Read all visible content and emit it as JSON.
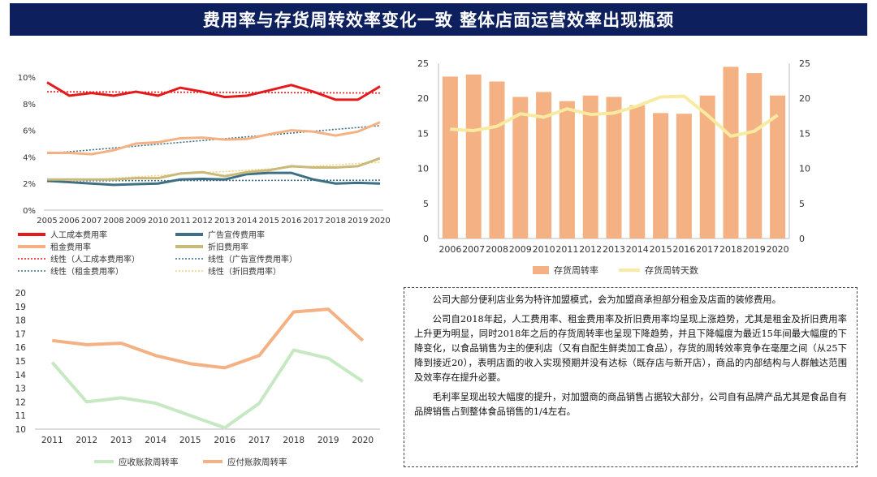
{
  "title": "费用率与存货周转效率变化一致 整体店面运营效率出现瓶颈",
  "chart_data": [
    {
      "type": "line",
      "x": [
        "2005",
        "2006",
        "2007",
        "2008",
        "2009",
        "2010",
        "2011",
        "2012",
        "2013",
        "2014",
        "2015",
        "2016",
        "2017",
        "2018",
        "2019",
        "2020"
      ],
      "ylim": [
        0,
        10
      ],
      "yticks": [
        "0%",
        "2%",
        "4%",
        "6%",
        "8%",
        "10%"
      ],
      "series": [
        {
          "name": "人工成本费用率",
          "values": [
            9.6,
            8.6,
            8.8,
            8.6,
            8.9,
            8.6,
            9.2,
            8.9,
            8.5,
            8.6,
            9.0,
            9.4,
            8.9,
            8.3,
            8.3,
            9.3
          ],
          "color": "#e41a1c"
        },
        {
          "name": "广告宣传费用率",
          "values": [
            2.2,
            2.1,
            2.0,
            1.9,
            1.95,
            2.0,
            2.3,
            2.35,
            2.3,
            2.7,
            2.8,
            2.8,
            2.3,
            2.0,
            2.05,
            2.0
          ],
          "color": "#3e6f84"
        },
        {
          "name": "租金费用率",
          "values": [
            4.3,
            4.3,
            4.2,
            4.5,
            5.0,
            5.1,
            5.4,
            5.45,
            5.3,
            5.35,
            5.7,
            6.0,
            5.9,
            5.6,
            5.9,
            6.6
          ],
          "color": "#f4b183"
        },
        {
          "name": "折旧费用率",
          "values": [
            2.3,
            2.3,
            2.3,
            2.3,
            2.4,
            2.4,
            2.75,
            2.85,
            2.55,
            2.85,
            3.0,
            3.3,
            3.2,
            3.2,
            3.3,
            3.9
          ],
          "color": "#c9b97b"
        }
      ],
      "trendlines": [
        {
          "name": "线性（人工成本费用率）",
          "values": [
            8.9,
            8.8
          ],
          "color": "#e41a1c"
        },
        {
          "name": "线性（广告宣传费用率）",
          "values": [
            2.2,
            2.25
          ],
          "color": "#3e6f84"
        },
        {
          "name": "线性（租金费用率）",
          "values": [
            4.25,
            6.35
          ],
          "color": "#3e6f84"
        },
        {
          "name": "线性（折旧费用率）",
          "values": [
            2.1,
            3.6
          ],
          "color": "#f4d27a"
        }
      ]
    },
    {
      "type": "bar",
      "categories": [
        "2006",
        "2007",
        "2008",
        "2009",
        "2010",
        "2011",
        "2012",
        "2013",
        "2014",
        "2015",
        "2016",
        "2017",
        "2018",
        "2019",
        "2020"
      ],
      "ylim": [
        0,
        25
      ],
      "yticks": [
        "0",
        "5",
        "10",
        "15",
        "20",
        "25"
      ],
      "y2lim": [
        0,
        25
      ],
      "y2ticks": [
        "0",
        "5",
        "10",
        "15",
        "20",
        "25"
      ],
      "series": [
        {
          "name": "存货周转率",
          "type": "bar",
          "axis": "left",
          "values": [
            23.1,
            23.4,
            22.4,
            20.2,
            20.9,
            19.6,
            20.4,
            20.2,
            19.0,
            17.9,
            17.8,
            20.4,
            24.5,
            23.6,
            20.4
          ],
          "color": "#f4b183"
        },
        {
          "name": "存货周转天数",
          "type": "line",
          "axis": "right",
          "values": [
            15.6,
            15.4,
            16.0,
            17.8,
            17.3,
            18.5,
            17.7,
            17.9,
            18.9,
            20.2,
            20.3,
            17.6,
            14.6,
            15.3,
            17.6
          ],
          "color": "#f8eaa0"
        }
      ]
    },
    {
      "type": "line",
      "x": [
        "2011",
        "2012",
        "2013",
        "2014",
        "2015",
        "2016",
        "2017",
        "2018",
        "2019",
        "2020"
      ],
      "ylim": [
        10,
        20
      ],
      "yticks": [
        "10",
        "11",
        "12",
        "13",
        "14",
        "15",
        "16",
        "17",
        "18",
        "19",
        "20"
      ],
      "series": [
        {
          "name": "应收账款周转率",
          "values": [
            14.9,
            12.0,
            12.3,
            11.9,
            11.0,
            10.1,
            11.9,
            15.8,
            15.2,
            13.5
          ],
          "color": "#c6e8c3"
        },
        {
          "name": "应付账款周转率",
          "values": [
            16.5,
            16.2,
            16.3,
            15.4,
            14.8,
            14.5,
            15.4,
            18.6,
            18.8,
            16.5
          ],
          "color": "#f4b183"
        }
      ]
    }
  ],
  "notes": [
    "公司大部分便利店业务为特许加盟模式，会为加盟商承担部分租金及店面的装修费用。",
    "公司自2018年起，人工费用率、租金费用率及折旧费用率均呈现上涨趋势，尤其是租金及折旧费用率上升更为明显，同时2018年之后的存货周转率也呈现下降趋势，并且下降幅度为最近15年间最大幅度的下降变化，以食品销售为主的便利店（又有自配生鲜类加工食品），存货的周转效率竞争在毫厘之间（从25下降到接近20），表明店面的收入实现预期并没有达标（既存店与新开店），商品的内部结构与人群触达范围及效率存在提升必要。",
    "毛利率呈现出较大幅度的提升，对加盟商的商品销售占据较大部分，公司自有品牌产品尤其是食品自有品牌销售占到整体食品销售的1/4左右。"
  ]
}
